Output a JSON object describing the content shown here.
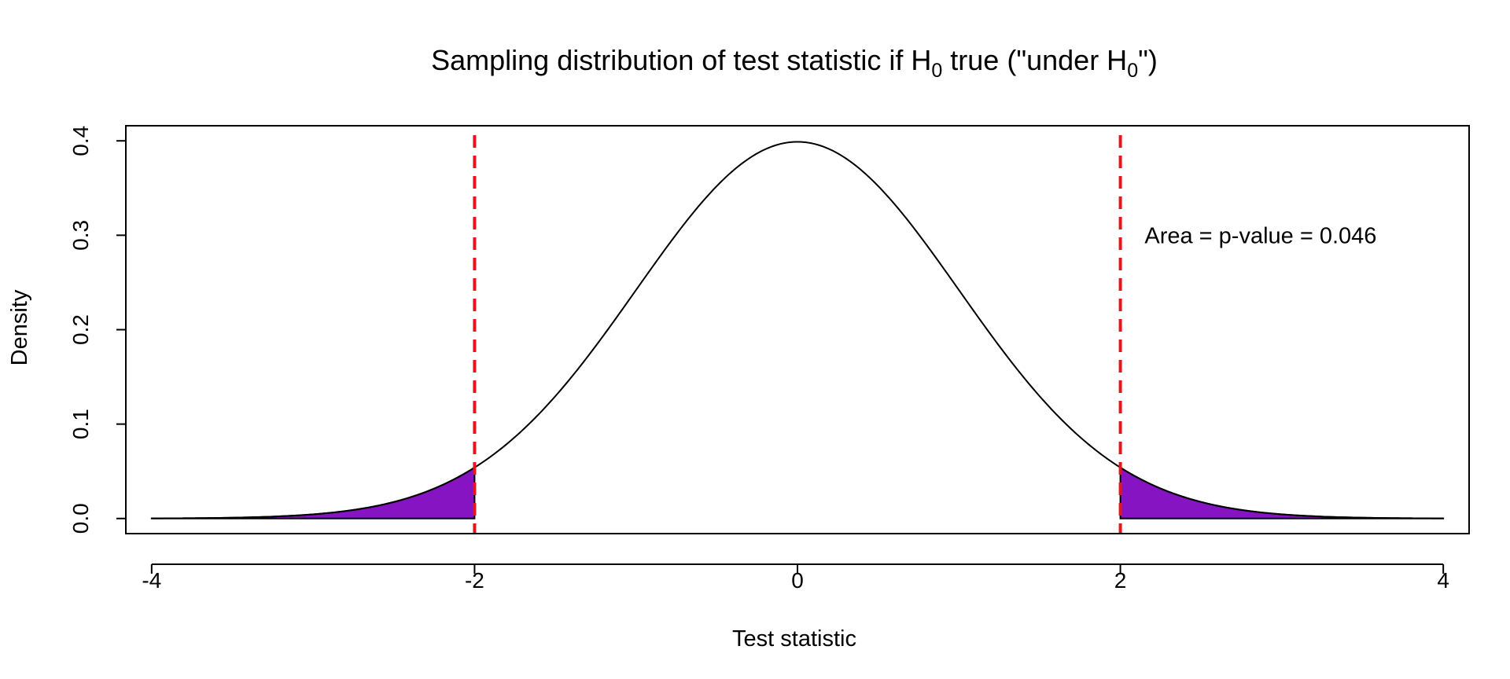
{
  "chart_data": {
    "type": "area",
    "title": {
      "prefix": "Sampling distribution of test statistic if H",
      "sub1": "0",
      "middle": " true (\"under H",
      "sub2": "0",
      "suffix": "\")"
    },
    "xlabel": "Test statistic",
    "ylabel": "Density",
    "xlim": [
      -4.16,
      4.16
    ],
    "ylim": [
      -0.016,
      0.416
    ],
    "x_ticks": [
      -4,
      -2,
      0,
      2,
      4
    ],
    "x_tick_labels": [
      "-4",
      "-2",
      "0",
      "2",
      "4"
    ],
    "y_ticks": [
      0.0,
      0.1,
      0.2,
      0.3,
      0.4
    ],
    "y_tick_labels": [
      "0.0",
      "0.1",
      "0.2",
      "0.3",
      "0.4"
    ],
    "curve": {
      "distribution": "standard normal",
      "x_from": -4,
      "x_to": 4,
      "peak_x": 0,
      "peak_y": 0.399
    },
    "shaded_regions": [
      {
        "from": -4,
        "to": -2
      },
      {
        "from": 2,
        "to": 4
      }
    ],
    "reference_lines": [
      {
        "x": -2,
        "style": "dashed"
      },
      {
        "x": 2,
        "style": "dashed"
      }
    ],
    "annotation": {
      "text": "Area = p-value = 0.046",
      "x": 2.15,
      "y": 0.3
    },
    "grid": false,
    "colors": {
      "curve": "#000000",
      "shade": "#8614c2",
      "reference_line": "#e8141c",
      "axis": "#000000"
    }
  }
}
